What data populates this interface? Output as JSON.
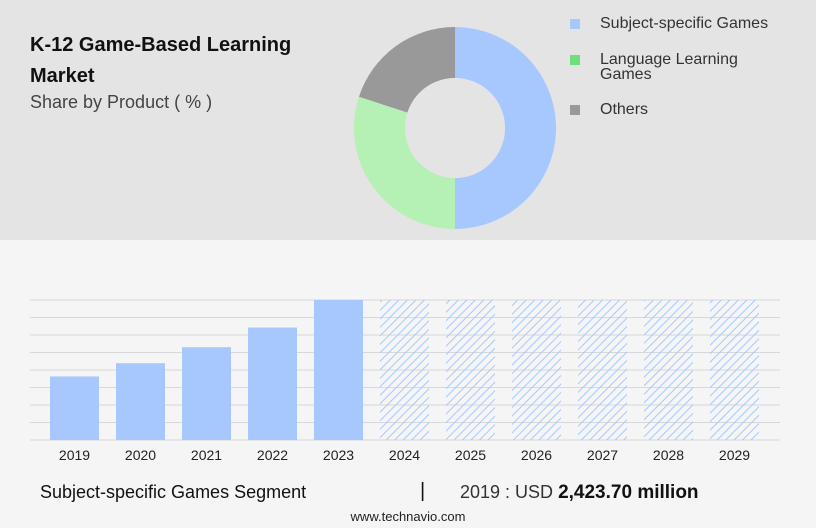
{
  "header": {
    "title_line1": "K-12 Game-Based Learning",
    "title_line2": "Market",
    "subtitle": "Share by Product ( % )"
  },
  "colors": {
    "subject_specific": "#a6c8ff",
    "language_learning": "#b5f0b5",
    "others": "#999999",
    "legend_language": "#6ee07a",
    "bar": "#a6c8ff",
    "forecast_hatch": "#a6c8ff",
    "top_panel_bg": "#e4e4e4",
    "page_bg": "#f5f5f5"
  },
  "legend": {
    "items": [
      {
        "label": "Subject-specific Games",
        "color": "#a6c8ff"
      },
      {
        "label_line1": "Language Learning",
        "label_line2": "Games",
        "color": "#6ee07a"
      },
      {
        "label": "Others",
        "color": "#999999"
      }
    ]
  },
  "chart_data": [
    {
      "type": "pie",
      "donut": true,
      "categories": [
        "Subject-specific Games",
        "Language Learning Games",
        "Others"
      ],
      "values": [
        50,
        30,
        20
      ],
      "colors": [
        "#a6c8ff",
        "#b5f0b5",
        "#999999"
      ]
    },
    {
      "type": "bar",
      "categories": [
        "2019",
        "2020",
        "2021",
        "2022",
        "2023",
        "2024",
        "2025",
        "2026",
        "2027",
        "2028",
        "2029"
      ],
      "values": [
        2423.7,
        2930,
        3540,
        4290,
        5340,
        5340,
        5340,
        5340,
        5340,
        5340,
        5340
      ],
      "forecast": [
        false,
        false,
        false,
        false,
        false,
        true,
        true,
        true,
        true,
        true,
        true
      ],
      "ylim": [
        0,
        5340
      ],
      "grid": true
    }
  ],
  "footer": {
    "segment": "Subject-specific Games Segment",
    "divider": "|",
    "value_prefix": "2019 : USD",
    "value": "2,423.70 million",
    "source": "www.technavio.com"
  }
}
